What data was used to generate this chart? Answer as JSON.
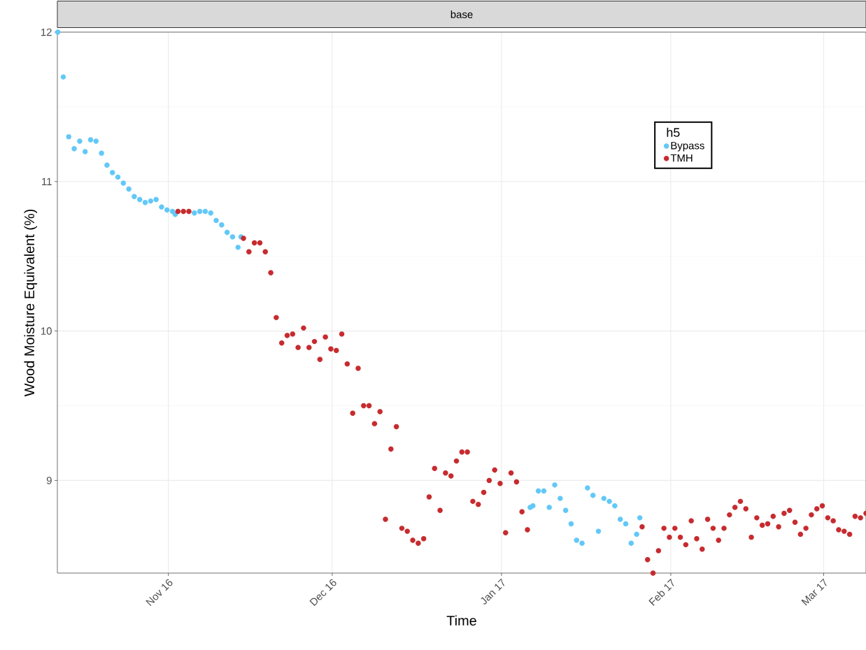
{
  "chart_data": {
    "type": "scatter",
    "title": "base",
    "xlabel": "Time",
    "ylabel": "Wood Moisture Equivalent (%)",
    "legend_title": "h5",
    "xlim": [
      "2016-10-11T16:00",
      "2017-03-08T18:00"
    ],
    "ylim": [
      8.38,
      12.0
    ],
    "xticks": [
      {
        "value": "2016-11-01",
        "label": "Nov 16"
      },
      {
        "value": "2016-12-01",
        "label": "Dec 16"
      },
      {
        "value": "2017-01-01",
        "label": "Jan 17"
      },
      {
        "value": "2017-02-01",
        "label": "Feb 17"
      },
      {
        "value": "2017-03-01",
        "label": "Mar 17"
      }
    ],
    "yticks": [
      9,
      10,
      11,
      12
    ],
    "grid": true,
    "legend": "top right",
    "marker": "circle",
    "series": [
      {
        "name": "Bypass",
        "color": "#62c8f7",
        "x": [
          "2016-10-11T18:00",
          "2016-10-12T18:00",
          "2016-10-13T18:00",
          "2016-10-14T18:00",
          "2016-10-15T18:00",
          "2016-10-16T18:00",
          "2016-10-17T18:00",
          "2016-10-18T18:00",
          "2016-10-19T18:00",
          "2016-10-20T18:00",
          "2016-10-21T18:00",
          "2016-10-22T18:00",
          "2016-10-23T18:00",
          "2016-10-24T18:00",
          "2016-10-25T18:00",
          "2016-10-26T18:00",
          "2016-10-27T18:00",
          "2016-10-28T18:00",
          "2016-10-29T18:00",
          "2016-10-30T18:00",
          "2016-10-31T18:00",
          "2016-11-01T18:00",
          "2016-11-02T06:00",
          "2016-11-05T18:00",
          "2016-11-06T18:00",
          "2016-11-07T18:00",
          "2016-11-08T18:00",
          "2016-11-09T18:00",
          "2016-11-10T18:00",
          "2016-11-11T18:00",
          "2016-11-12T18:00",
          "2016-11-13T18:00",
          "2016-11-14T07:00",
          "2017-01-06T06:00",
          "2017-01-06T18:00",
          "2017-01-07T18:00",
          "2017-01-08T18:00",
          "2017-01-09T18:00",
          "2017-01-10T18:00",
          "2017-01-11T18:00",
          "2017-01-12T18:00",
          "2017-01-13T18:00",
          "2017-01-14T18:00",
          "2017-01-15T18:00",
          "2017-01-16T18:00",
          "2017-01-17T18:00",
          "2017-01-18T18:00",
          "2017-01-19T18:00",
          "2017-01-20T18:00",
          "2017-01-21T18:00",
          "2017-01-22T18:00",
          "2017-01-23T18:00",
          "2017-01-24T18:00",
          "2017-01-25T18:00",
          "2017-01-26T08:00"
        ],
        "values": [
          12.0,
          11.7,
          11.3,
          11.22,
          11.27,
          11.2,
          11.28,
          11.27,
          11.19,
          11.11,
          11.06,
          11.03,
          10.99,
          10.95,
          10.9,
          10.88,
          10.86,
          10.87,
          10.88,
          10.83,
          10.81,
          10.8,
          10.78,
          10.79,
          10.8,
          10.8,
          10.79,
          10.74,
          10.71,
          10.66,
          10.63,
          10.56,
          10.63,
          8.82,
          8.83,
          8.93,
          8.93,
          8.82,
          8.97,
          8.88,
          8.8,
          8.71,
          8.6,
          8.58,
          8.95,
          8.9,
          8.66,
          8.88,
          8.86,
          8.83,
          8.74,
          8.71,
          8.58,
          8.64,
          8.75
        ]
      },
      {
        "name": "TMH",
        "color": "#c62b2f",
        "x": [
          "2016-11-02T18:00",
          "2016-11-03T18:00",
          "2016-11-04T18:00",
          "2016-11-14T18:00",
          "2016-11-15T18:00",
          "2016-11-16T18:00",
          "2016-11-17T18:00",
          "2016-11-18T18:00",
          "2016-11-19T18:00",
          "2016-11-20T18:00",
          "2016-11-21T18:00",
          "2016-11-22T18:00",
          "2016-11-23T18:00",
          "2016-11-24T18:00",
          "2016-11-25T18:00",
          "2016-11-26T18:00",
          "2016-11-27T18:00",
          "2016-11-28T18:00",
          "2016-11-29T18:00",
          "2016-11-30T18:00",
          "2016-12-01T18:00",
          "2016-12-02T18:00",
          "2016-12-03T18:00",
          "2016-12-04T18:00",
          "2016-12-05T18:00",
          "2016-12-06T18:00",
          "2016-12-07T18:00",
          "2016-12-08T18:00",
          "2016-12-09T18:00",
          "2016-12-10T18:00",
          "2016-12-11T18:00",
          "2016-12-12T18:00",
          "2016-12-13T18:00",
          "2016-12-14T18:00",
          "2016-12-15T18:00",
          "2016-12-16T18:00",
          "2016-12-17T18:00",
          "2016-12-18T18:00",
          "2016-12-19T18:00",
          "2016-12-20T18:00",
          "2016-12-21T18:00",
          "2016-12-22T18:00",
          "2016-12-23T18:00",
          "2016-12-24T18:00",
          "2016-12-25T18:00",
          "2016-12-26T18:00",
          "2016-12-27T18:00",
          "2016-12-28T18:00",
          "2016-12-29T18:00",
          "2016-12-30T18:00",
          "2016-12-31T18:00",
          "2017-01-01T18:00",
          "2017-01-02T18:00",
          "2017-01-03T18:00",
          "2017-01-04T18:00",
          "2017-01-05T18:00",
          "2017-01-26T18:00",
          "2017-01-27T18:00",
          "2017-01-28T18:00",
          "2017-01-29T18:00",
          "2017-01-30T18:00",
          "2017-01-31T18:00",
          "2017-02-01T18:00",
          "2017-02-02T18:00",
          "2017-02-03T18:00",
          "2017-02-04T18:00",
          "2017-02-05T18:00",
          "2017-02-06T18:00",
          "2017-02-07T18:00",
          "2017-02-08T18:00",
          "2017-02-09T18:00",
          "2017-02-10T18:00",
          "2017-02-11T18:00",
          "2017-02-12T18:00",
          "2017-02-13T18:00",
          "2017-02-14T18:00",
          "2017-02-15T18:00",
          "2017-02-16T18:00",
          "2017-02-17T18:00",
          "2017-02-18T18:00",
          "2017-02-19T18:00",
          "2017-02-20T18:00",
          "2017-02-21T18:00",
          "2017-02-22T18:00",
          "2017-02-23T18:00",
          "2017-02-24T18:00",
          "2017-02-25T18:00",
          "2017-02-26T18:00",
          "2017-02-27T18:00",
          "2017-02-28T18:00",
          "2017-03-01T18:00",
          "2017-03-02T18:00",
          "2017-03-03T18:00",
          "2017-03-04T18:00",
          "2017-03-05T18:00",
          "2017-03-06T18:00",
          "2017-03-07T18:00",
          "2017-03-08T18:00"
        ],
        "values": [
          10.8,
          10.8,
          10.8,
          10.62,
          10.53,
          10.59,
          10.59,
          10.53,
          10.39,
          10.09,
          9.92,
          9.97,
          9.98,
          9.89,
          10.02,
          9.89,
          9.93,
          9.81,
          9.96,
          9.88,
          9.87,
          9.98,
          9.78,
          9.45,
          9.75,
          9.5,
          9.5,
          9.38,
          9.46,
          8.74,
          9.21,
          9.36,
          8.68,
          8.66,
          8.6,
          8.58,
          8.61,
          8.89,
          9.08,
          8.8,
          9.05,
          9.03,
          9.13,
          9.19,
          9.19,
          8.86,
          8.84,
          8.92,
          9.0,
          9.07,
          8.98,
          8.65,
          9.05,
          8.99,
          8.79,
          8.67,
          8.69,
          8.47,
          8.38,
          8.53,
          8.68,
          8.62,
          8.68,
          8.62,
          8.57,
          8.73,
          8.61,
          8.54,
          8.74,
          8.68,
          8.6,
          8.68,
          8.77,
          8.82,
          8.86,
          8.81,
          8.62,
          8.75,
          8.7,
          8.71,
          8.76,
          8.69,
          8.78,
          8.8,
          8.72,
          8.64,
          8.68,
          8.77,
          8.81,
          8.83,
          8.75,
          8.73,
          8.67,
          8.66,
          8.64,
          8.76,
          8.75,
          8.78
        ]
      }
    ]
  }
}
